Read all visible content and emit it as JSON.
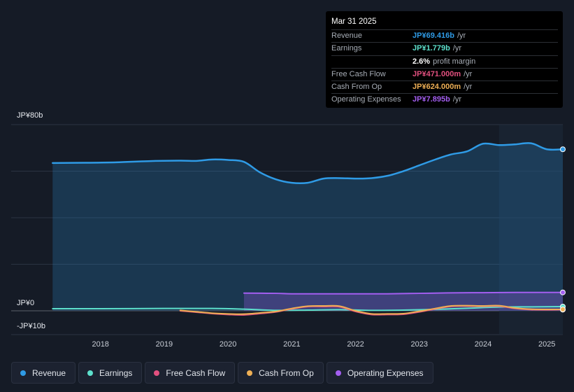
{
  "tooltip": {
    "date": "Mar 31 2025",
    "rows": [
      {
        "label": "Revenue",
        "value": "JP¥69.416b",
        "unit": "/yr",
        "color": "#2f9be6"
      },
      {
        "label": "Earnings",
        "value": "JP¥1.779b",
        "unit": "/yr",
        "color": "#5de0cc"
      },
      {
        "label": "",
        "value": "2.6%",
        "unit": "profit margin",
        "color": "#ffffff"
      },
      {
        "label": "Free Cash Flow",
        "value": "JP¥471.000m",
        "unit": "/yr",
        "color": "#e2507f"
      },
      {
        "label": "Cash From Op",
        "value": "JP¥624.000m",
        "unit": "/yr",
        "color": "#eeaf55"
      },
      {
        "label": "Operating Expenses",
        "value": "JP¥7.895b",
        "unit": "/yr",
        "color": "#a35ef0"
      }
    ]
  },
  "legend": [
    {
      "label": "Revenue",
      "color": "#2f9be6"
    },
    {
      "label": "Earnings",
      "color": "#5de0cc"
    },
    {
      "label": "Free Cash Flow",
      "color": "#e2507f"
    },
    {
      "label": "Cash From Op",
      "color": "#eeaf55"
    },
    {
      "label": "Operating Expenses",
      "color": "#a35ef0"
    }
  ],
  "chart_data": {
    "type": "line",
    "ylabels": {
      "top": "JP¥80b",
      "zero": "JP¥0",
      "bottom": "-JP¥10b"
    },
    "ylim": [
      -10,
      80
    ],
    "xlim": [
      2016.6,
      2025.25
    ],
    "xticks": [
      "2018",
      "2019",
      "2020",
      "2021",
      "2022",
      "2023",
      "2024",
      "2025"
    ],
    "highlight_from": 2024.25,
    "series": [
      {
        "name": "Revenue",
        "color": "#2f9be6",
        "fill": true,
        "x": [
          2017.25,
          2017.75,
          2018.25,
          2018.75,
          2019.25,
          2019.5,
          2019.75,
          2020.0,
          2020.25,
          2020.5,
          2020.75,
          2021.0,
          2021.25,
          2021.5,
          2021.75,
          2022.0,
          2022.25,
          2022.5,
          2022.75,
          2023.0,
          2023.25,
          2023.5,
          2023.75,
          2024.0,
          2024.25,
          2024.5,
          2024.75,
          2025.0,
          2025.25
        ],
        "y": [
          63.5,
          63.6,
          63.8,
          64.3,
          64.5,
          64.4,
          65.0,
          64.8,
          64.0,
          59.5,
          56.5,
          55.0,
          55.0,
          56.8,
          57.0,
          56.8,
          57.0,
          58.0,
          60.0,
          62.5,
          65.0,
          67.2,
          68.5,
          71.8,
          71.2,
          71.5,
          72.0,
          69.4,
          69.4
        ]
      },
      {
        "name": "Earnings",
        "color": "#5de0cc",
        "x": [
          2017.25,
          2018.0,
          2019.0,
          2019.75,
          2020.25,
          2020.75,
          2021.25,
          2021.75,
          2022.25,
          2022.75,
          2023.25,
          2023.75,
          2024.25,
          2024.75,
          2025.25
        ],
        "y": [
          0.9,
          0.9,
          1.0,
          1.0,
          0.7,
          0.2,
          0.3,
          0.5,
          0.2,
          0.3,
          0.6,
          1.1,
          1.6,
          1.7,
          1.8
        ]
      },
      {
        "name": "Free Cash Flow",
        "color": "#e2507f",
        "x": [
          2019.25,
          2019.5,
          2019.75,
          2020.0,
          2020.25,
          2020.5,
          2020.75,
          2021.0,
          2021.25,
          2021.5,
          2021.75,
          2022.0,
          2022.25,
          2022.5,
          2022.75,
          2023.0,
          2023.25,
          2023.5,
          2023.75,
          2024.0,
          2024.25,
          2024.5,
          2024.75,
          2025.0,
          2025.25
        ],
        "y": [
          0.0,
          -0.6,
          -1.2,
          -1.6,
          -1.8,
          -1.2,
          -0.5,
          0.8,
          1.8,
          1.8,
          1.7,
          -0.3,
          -1.6,
          -1.6,
          -1.5,
          -0.5,
          0.8,
          1.9,
          2.0,
          1.9,
          2.0,
          1.0,
          0.5,
          0.4,
          0.5
        ]
      },
      {
        "name": "Cash From Op",
        "color": "#eeaf55",
        "x": [
          2019.25,
          2019.5,
          2019.75,
          2020.0,
          2020.25,
          2020.5,
          2020.75,
          2021.0,
          2021.25,
          2021.5,
          2021.75,
          2022.0,
          2022.25,
          2022.5,
          2022.75,
          2023.0,
          2023.25,
          2023.5,
          2023.75,
          2024.0,
          2024.25,
          2024.5,
          2024.75,
          2025.0,
          2025.25
        ],
        "y": [
          0.2,
          -0.4,
          -1.0,
          -1.3,
          -1.4,
          -0.9,
          -0.3,
          1.0,
          2.0,
          2.1,
          2.0,
          0.0,
          -1.3,
          -1.3,
          -1.2,
          -0.2,
          1.0,
          2.1,
          2.2,
          2.1,
          2.2,
          1.2,
          0.7,
          0.6,
          0.6
        ]
      },
      {
        "name": "Operating Expenses",
        "color": "#a35ef0",
        "fill": true,
        "x": [
          2020.25,
          2020.75,
          2021.0,
          2021.5,
          2022.0,
          2022.5,
          2023.0,
          2023.5,
          2024.0,
          2024.5,
          2025.0,
          2025.25
        ],
        "y": [
          7.6,
          7.5,
          7.3,
          7.3,
          7.3,
          7.3,
          7.5,
          7.7,
          7.8,
          7.9,
          7.9,
          7.9
        ]
      }
    ]
  }
}
